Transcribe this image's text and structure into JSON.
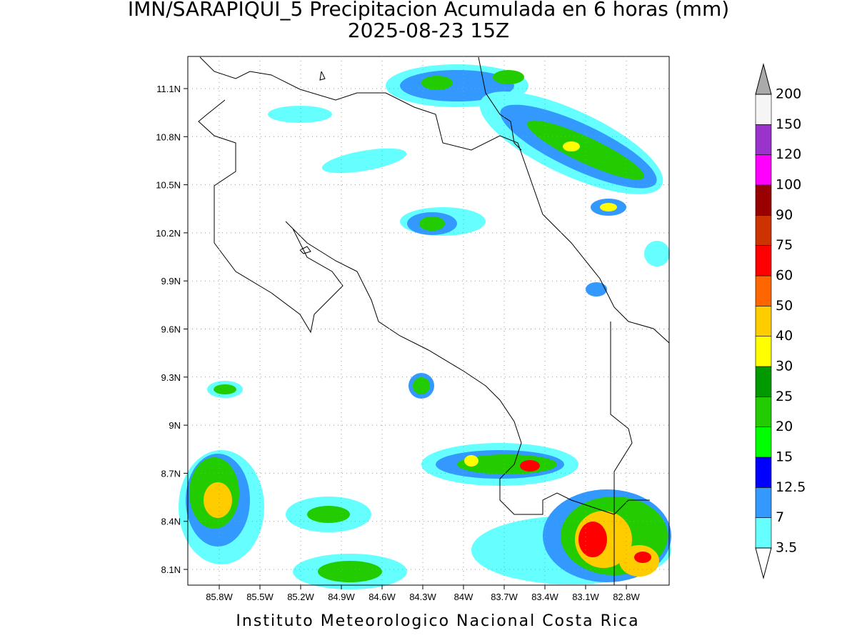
{
  "title": "IMN/SARAPIQUI_5 Precipitacion Acumulada en 6 horas (mm)",
  "subtitle": "2025-08-23 15Z",
  "map": {
    "lon_ticks": [
      "85.8W",
      "85.5W",
      "85.2W",
      "84.9W",
      "84.6W",
      "84.3W",
      "84W",
      "83.7W",
      "83.4W",
      "83.1W",
      "82.8W"
    ],
    "lat_ticks": [
      "11.1N",
      "10.8N",
      "10.5N",
      "10.2N",
      "9.9N",
      "9.6N",
      "9.3N",
      "9N",
      "8.7N",
      "8.4N",
      "8.1N"
    ]
  },
  "colorbar": {
    "labels": [
      "3.5",
      "7",
      "12.5",
      "15",
      "20",
      "25",
      "30",
      "40",
      "50",
      "60",
      "75",
      "90",
      "100",
      "120",
      "150",
      "200"
    ],
    "colors": [
      "#66ffff",
      "#3399ff",
      "#0000ff",
      "#00ff00",
      "#22cc00",
      "#009900",
      "#ffff00",
      "#ffcc00",
      "#ff6600",
      "#ff0000",
      "#cc3300",
      "#990000",
      "#ff00ff",
      "#9933cc",
      "#f5f5f5"
    ],
    "over_color": "#aaaaaa",
    "under_color": "#ffffff"
  },
  "footer": "Instituto Meteorologico Nacional Costa Rica"
}
